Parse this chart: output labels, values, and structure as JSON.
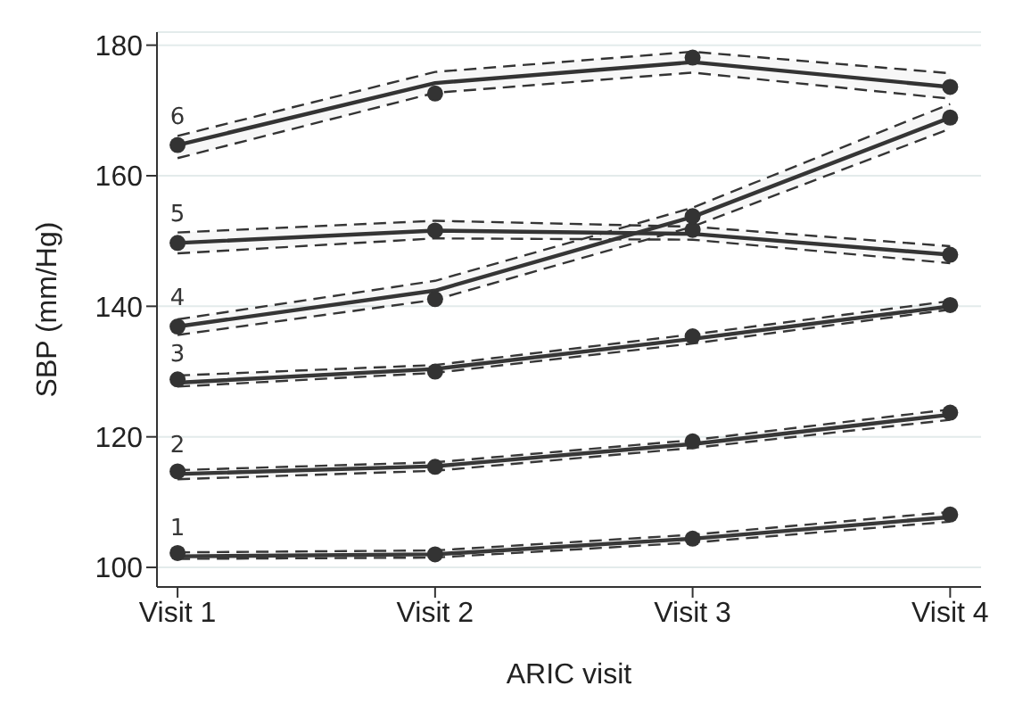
{
  "chart_data": {
    "type": "line",
    "xlabel": "ARIC visit",
    "ylabel": "SBP (mm/Hg)",
    "categories": [
      "Visit 1",
      "Visit 2",
      "Visit 3",
      "Visit 4"
    ],
    "ylim": [
      97,
      182
    ],
    "yticks": [
      100,
      120,
      140,
      160,
      180
    ],
    "grid": "y",
    "marker": "none",
    "series": [
      {
        "name": "6",
        "color": "#333333",
        "values": [
          164.7,
          174.2,
          177.4,
          173.6
        ],
        "lower": [
          162.7,
          172.7,
          175.8,
          171.8
        ],
        "upper": [
          166.1,
          175.9,
          179,
          175.7
        ]
      },
      {
        "type": "scatter",
        "marker": "circle",
        "color": "#333333",
        "values": [
          164.7,
          172.6,
          178.1,
          173.6
        ]
      },
      {
        "name": "5",
        "color": "#343434",
        "values": [
          149.7,
          151.6,
          151.1,
          147.9
        ],
        "lower": [
          148.1,
          150.4,
          150.2,
          146.6
        ],
        "upper": [
          151.3,
          153.1,
          152.2,
          149.2
        ]
      },
      {
        "type": "scatter",
        "marker": "circle",
        "color": "#333333",
        "values": [
          149.7,
          151.6,
          151.7,
          147.9
        ]
      },
      {
        "name": "4",
        "color": "#353535",
        "values": [
          136.9,
          142.4,
          153.7,
          168.9
        ],
        "lower": [
          135.6,
          141,
          152.2,
          167.2
        ],
        "upper": [
          138,
          143.9,
          155.1,
          171
        ]
      },
      {
        "type": "scatter",
        "marker": "circle",
        "color": "#333333",
        "values": [
          136.9,
          141.1,
          153.8,
          168.9
        ]
      },
      {
        "name": "3",
        "color": "#363636",
        "values": [
          128.3,
          130.4,
          135,
          140
        ],
        "lower": [
          127.7,
          129.8,
          134.3,
          139.5
        ],
        "upper": [
          129.4,
          131,
          135.7,
          140.8
        ]
      },
      {
        "type": "scatter",
        "marker": "circle",
        "color": "#333333",
        "values": [
          128.8,
          130,
          135.4,
          140.2
        ]
      },
      {
        "name": "2",
        "color": "#373737",
        "values": [
          114.3,
          115.5,
          118.9,
          123.4
        ],
        "lower": [
          113.5,
          114.8,
          118.3,
          122.6
        ],
        "upper": [
          114.9,
          116.1,
          119.5,
          124.2
        ]
      },
      {
        "type": "scatter",
        "marker": "circle",
        "color": "#333333",
        "values": [
          114.7,
          115.4,
          119.3,
          123.7
        ]
      },
      {
        "name": "1",
        "color": "#383838",
        "values": [
          101.7,
          102,
          104.4,
          107.7
        ],
        "lower": [
          101.3,
          101.5,
          103.8,
          107
        ],
        "upper": [
          102.3,
          102.6,
          105,
          108.5
        ]
      },
      {
        "type": "scatter",
        "marker": "circle",
        "color": "#333333",
        "values": [
          102.2,
          102,
          104.4,
          108.1
        ]
      }
    ]
  }
}
